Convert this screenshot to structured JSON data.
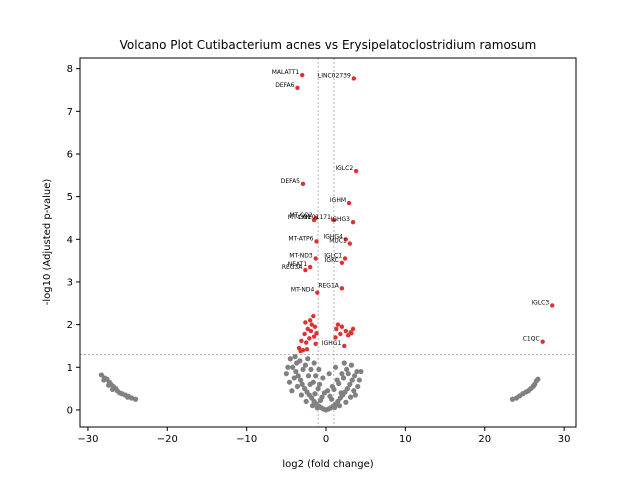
{
  "chart_data": {
    "type": "scatter",
    "title": "Volcano Plot Cutibacterium acnes vs Erysipelatoclostridium ramosum",
    "xlabel": "log2 (fold change)",
    "ylabel": "-log10 (Adjusted p-value)",
    "xlim": [
      -31,
      31.5
    ],
    "ylim": [
      -0.4,
      8.25
    ],
    "xticks": [
      -30,
      -20,
      -10,
      0,
      10,
      20,
      30
    ],
    "yticks": [
      0,
      1,
      2,
      3,
      4,
      5,
      6,
      7,
      8
    ],
    "fc_thresholds": [
      -1,
      1
    ],
    "p_threshold": 1.3,
    "colors": {
      "significant": "#e03030",
      "nonsignificant": "#808080",
      "threshold": "#888888"
    },
    "grid": false,
    "labeled_points": [
      {
        "label": "MALATT1",
        "x": -3.0,
        "y": 7.85
      },
      {
        "label": "LINC02739",
        "x": 3.5,
        "y": 7.77
      },
      {
        "label": "DEFA6",
        "x": -3.6,
        "y": 7.55
      },
      {
        "label": "IGLC2",
        "x": 3.8,
        "y": 5.6
      },
      {
        "label": "DEFA5",
        "x": -2.9,
        "y": 5.3
      },
      {
        "label": "IGHM",
        "x": 2.9,
        "y": 4.85
      },
      {
        "label": "MT-CO2",
        "x": -1.3,
        "y": 4.5
      },
      {
        "label": "MT-CO1",
        "x": -1.5,
        "y": 4.45
      },
      {
        "label": "LINC01171",
        "x": 1.0,
        "y": 4.45
      },
      {
        "label": "IGHG3",
        "x": 3.4,
        "y": 4.4
      },
      {
        "label": "IGHG4",
        "x": 2.5,
        "y": 4.0
      },
      {
        "label": "MUC1",
        "x": 3.0,
        "y": 3.9
      },
      {
        "label": "MT-ATP6",
        "x": -1.2,
        "y": 3.95
      },
      {
        "label": "MT-ND3",
        "x": -1.3,
        "y": 3.55
      },
      {
        "label": "IGLC1",
        "x": 2.4,
        "y": 3.55
      },
      {
        "label": "IGKC",
        "x": 2.0,
        "y": 3.45
      },
      {
        "label": "NEAT1",
        "x": -2.0,
        "y": 3.35
      },
      {
        "label": "REG3A",
        "x": -2.6,
        "y": 3.28
      },
      {
        "label": "REG1A",
        "x": 2.0,
        "y": 2.85
      },
      {
        "label": "MT-ND4",
        "x": -1.1,
        "y": 2.75
      },
      {
        "label": "IGLC3",
        "x": 28.5,
        "y": 2.45
      },
      {
        "label": "C1QC",
        "x": 27.3,
        "y": 1.6
      },
      {
        "label": "IGHG1",
        "x": 2.3,
        "y": 1.5
      }
    ],
    "unlabeled_significant": [
      [
        -1.6,
        2.2
      ],
      [
        -2.0,
        2.1
      ],
      [
        -1.8,
        2.0
      ],
      [
        -2.6,
        2.05
      ],
      [
        -1.4,
        1.95
      ],
      [
        -2.3,
        1.9
      ],
      [
        -1.9,
        1.85
      ],
      [
        -1.2,
        1.8
      ],
      [
        -2.7,
        1.78
      ],
      [
        -1.5,
        1.72
      ],
      [
        -2.1,
        1.68
      ],
      [
        -3.1,
        1.62
      ],
      [
        -2.5,
        1.58
      ],
      [
        -1.3,
        1.55
      ],
      [
        -3.4,
        1.45
      ],
      [
        -2.9,
        1.4
      ],
      [
        -3.2,
        1.38
      ],
      [
        -2.4,
        1.42
      ],
      [
        1.5,
        2.0
      ],
      [
        2.0,
        1.95
      ],
      [
        1.3,
        1.9
      ],
      [
        2.5,
        1.85
      ],
      [
        3.1,
        1.82
      ],
      [
        1.8,
        1.78
      ],
      [
        2.8,
        1.75
      ],
      [
        1.2,
        1.7
      ],
      [
        3.4,
        1.9
      ],
      [
        3.2,
        1.8
      ]
    ],
    "nonsignificant_points": [
      [
        -28.3,
        0.82
      ],
      [
        -27.9,
        0.75
      ],
      [
        -27.6,
        0.72
      ],
      [
        -27.3,
        0.65
      ],
      [
        -27.1,
        0.6
      ],
      [
        -28.0,
        0.7
      ],
      [
        -26.8,
        0.55
      ],
      [
        -26.5,
        0.5
      ],
      [
        -26.3,
        0.45
      ],
      [
        -26.0,
        0.4
      ],
      [
        -25.7,
        0.38
      ],
      [
        -25.3,
        0.35
      ],
      [
        -24.9,
        0.32
      ],
      [
        -24.5,
        0.28
      ],
      [
        -24.0,
        0.25
      ],
      [
        -26.9,
        0.48
      ],
      [
        -27.4,
        0.58
      ],
      [
        -25.0,
        0.3
      ],
      [
        23.5,
        0.25
      ],
      [
        24.0,
        0.28
      ],
      [
        24.4,
        0.33
      ],
      [
        24.8,
        0.38
      ],
      [
        25.2,
        0.42
      ],
      [
        25.5,
        0.45
      ],
      [
        25.8,
        0.5
      ],
      [
        26.1,
        0.55
      ],
      [
        26.3,
        0.6
      ],
      [
        26.5,
        0.68
      ],
      [
        26.7,
        0.72
      ],
      [
        26.2,
        0.58
      ],
      [
        -4.2,
        1.0
      ],
      [
        -3.8,
        0.9
      ],
      [
        -3.5,
        0.8
      ],
      [
        -3.2,
        0.7
      ],
      [
        -3.0,
        0.6
      ],
      [
        -2.7,
        0.5
      ],
      [
        -2.4,
        0.42
      ],
      [
        -2.1,
        0.35
      ],
      [
        -1.8,
        0.28
      ],
      [
        -1.5,
        0.2
      ],
      [
        -1.2,
        0.14
      ],
      [
        -0.9,
        0.09
      ],
      [
        -0.6,
        0.05
      ],
      [
        -0.3,
        0.02
      ],
      [
        0.0,
        0.0
      ],
      [
        0.3,
        0.02
      ],
      [
        0.6,
        0.05
      ],
      [
        0.9,
        0.09
      ],
      [
        1.2,
        0.14
      ],
      [
        1.5,
        0.2
      ],
      [
        1.8,
        0.28
      ],
      [
        2.1,
        0.35
      ],
      [
        2.4,
        0.42
      ],
      [
        2.7,
        0.5
      ],
      [
        3.0,
        0.6
      ],
      [
        3.3,
        0.7
      ],
      [
        3.6,
        0.8
      ],
      [
        3.9,
        0.9
      ],
      [
        -3.7,
        1.1
      ],
      [
        -2.9,
        0.95
      ],
      [
        -2.2,
        0.8
      ],
      [
        -1.6,
        0.65
      ],
      [
        -1.0,
        0.5
      ],
      [
        -0.5,
        0.3
      ],
      [
        0.5,
        0.32
      ],
      [
        1.0,
        0.48
      ],
      [
        1.6,
        0.62
      ],
      [
        2.2,
        0.75
      ],
      [
        2.8,
        0.85
      ],
      [
        -4.5,
        1.2
      ],
      [
        -3.3,
        1.15
      ],
      [
        -2.6,
        1.05
      ],
      [
        -1.9,
        0.95
      ],
      [
        -1.3,
        0.8
      ],
      [
        -0.8,
        0.6
      ],
      [
        -0.2,
        0.4
      ],
      [
        0.2,
        0.45
      ],
      [
        0.8,
        0.55
      ],
      [
        1.4,
        0.7
      ],
      [
        2.0,
        0.85
      ],
      [
        2.6,
        0.95
      ],
      [
        3.2,
        1.05
      ],
      [
        -4.0,
        0.75
      ],
      [
        -3.6,
        0.55
      ],
      [
        -3.1,
        0.35
      ],
      [
        -2.5,
        0.2
      ],
      [
        -1.7,
        0.1
      ],
      [
        -1.1,
        0.05
      ],
      [
        1.1,
        0.06
      ],
      [
        1.7,
        0.1
      ],
      [
        2.5,
        0.18
      ],
      [
        3.1,
        0.3
      ],
      [
        3.5,
        0.45
      ],
      [
        -4.8,
        1.0
      ],
      [
        -5.0,
        0.85
      ],
      [
        -4.6,
        0.65
      ],
      [
        4.2,
        0.7
      ],
      [
        4.0,
        0.55
      ],
      [
        -2.3,
        1.2
      ],
      [
        -1.5,
        1.1
      ],
      [
        -0.9,
        0.95
      ],
      [
        0.4,
        0.85
      ],
      [
        1.2,
        1.0
      ],
      [
        2.3,
        1.1
      ],
      [
        -2.0,
        0.6
      ],
      [
        -0.4,
        0.75
      ],
      [
        0.7,
        0.25
      ],
      [
        -0.7,
        0.22
      ],
      [
        -3.9,
        1.25
      ],
      [
        -4.3,
        0.45
      ],
      [
        3.7,
        0.35
      ],
      [
        4.4,
        0.9
      ],
      [
        -1.4,
        0.38
      ],
      [
        1.9,
        0.4
      ]
    ]
  }
}
